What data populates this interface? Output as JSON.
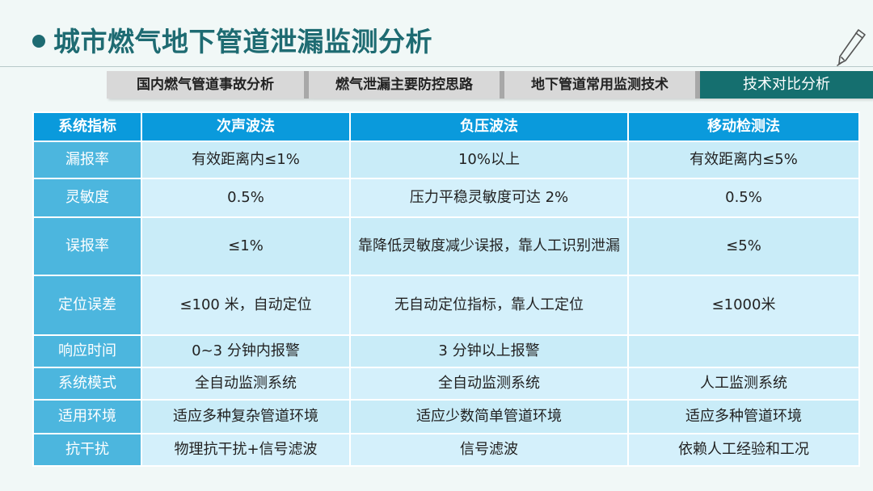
{
  "title": "城市燃气地下管道泄漏监测分析",
  "tabs": [
    {
      "label": "国内燃气管道事故分析"
    },
    {
      "label": "燃气泄漏主要防控思路"
    },
    {
      "label": "地下管道常用监测技术"
    },
    {
      "label": "技术对比分析"
    }
  ],
  "table": {
    "headers": [
      "系统指标",
      "次声波法",
      "负压波法",
      "移动检测法"
    ],
    "rows": [
      [
        "漏报率",
        "有效距离内≤1%",
        "10%以上",
        "有效距离内≤5%"
      ],
      [
        "灵敏度",
        "0.5%",
        "压力平稳灵敏度可达 2%",
        "0.5%"
      ],
      [
        "误报率",
        "≤1%",
        "靠降低灵敏度减少误报，靠人工识别泄漏",
        "≤5%"
      ],
      [
        "定位误差",
        "≤100 米，自动定位",
        "无自动定位指标，靠人工定位",
        "≤1000米"
      ],
      [
        "响应时间",
        "0~3 分钟内报警",
        "3 分钟以上报警",
        ""
      ],
      [
        "系统模式",
        "全自动监测系统",
        "全自动监测系统",
        "人工监测系统"
      ],
      [
        "适用环境",
        "适应多种复杂管道环境",
        "适应少数简单管道环境",
        "适应多种管道环境"
      ],
      [
        "抗干扰",
        "物理抗干扰+信号滤波",
        "信号滤波",
        "依赖人工经验和工况"
      ]
    ]
  }
}
